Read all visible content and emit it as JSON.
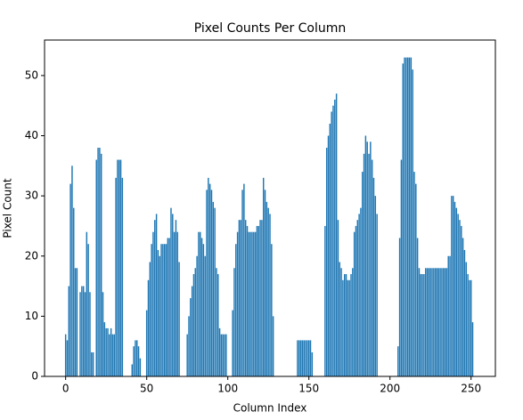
{
  "chart_data": {
    "type": "bar",
    "title": "Pixel Counts Per Column",
    "xlabel": "Column Index",
    "ylabel": "Pixel Count",
    "color": "#1f77b4",
    "x": [
      0,
      1,
      2,
      3,
      4,
      5,
      6,
      7,
      8,
      9,
      10,
      11,
      12,
      13,
      14,
      15,
      16,
      17,
      18,
      19,
      20,
      21,
      22,
      23,
      24,
      25,
      26,
      27,
      28,
      29,
      30,
      31,
      32,
      33,
      34,
      35,
      36,
      37,
      38,
      39,
      40,
      41,
      42,
      43,
      44,
      45,
      46,
      47,
      48,
      49,
      50,
      51,
      52,
      53,
      54,
      55,
      56,
      57,
      58,
      59,
      60,
      61,
      62,
      63,
      64,
      65,
      66,
      67,
      68,
      69,
      70,
      71,
      72,
      73,
      74,
      75,
      76,
      77,
      78,
      79,
      80,
      81,
      82,
      83,
      84,
      85,
      86,
      87,
      88,
      89,
      90,
      91,
      92,
      93,
      94,
      95,
      96,
      97,
      98,
      99,
      100,
      101,
      102,
      103,
      104,
      105,
      106,
      107,
      108,
      109,
      110,
      111,
      112,
      113,
      114,
      115,
      116,
      117,
      118,
      119,
      120,
      121,
      122,
      123,
      124,
      125,
      126,
      127,
      128,
      129,
      130,
      131,
      132,
      133,
      134,
      135,
      136,
      137,
      138,
      139,
      140,
      141,
      142,
      143,
      144,
      145,
      146,
      147,
      148,
      149,
      150,
      151,
      152,
      153,
      154,
      155,
      156,
      157,
      158,
      159,
      160,
      161,
      162,
      163,
      164,
      165,
      166,
      167,
      168,
      169,
      170,
      171,
      172,
      173,
      174,
      175,
      176,
      177,
      178,
      179,
      180,
      181,
      182,
      183,
      184,
      185,
      186,
      187,
      188,
      189,
      190,
      191,
      192,
      193,
      194,
      195,
      196,
      197,
      198,
      199,
      200,
      201,
      202,
      203,
      204,
      205,
      206,
      207,
      208,
      209,
      210,
      211,
      212,
      213,
      214,
      215,
      216,
      217,
      218,
      219,
      220,
      221,
      222,
      223,
      224,
      225,
      226,
      227,
      228,
      229,
      230,
      231,
      232,
      233,
      234,
      235,
      236,
      237,
      238,
      239,
      240,
      241,
      242,
      243,
      244,
      245,
      246,
      247,
      248,
      249,
      250,
      251,
      252
    ],
    "values": [
      7,
      6,
      15,
      32,
      35,
      28,
      18,
      18,
      0,
      14,
      15,
      15,
      14,
      24,
      22,
      14,
      4,
      4,
      0,
      36,
      38,
      38,
      37,
      14,
      9,
      8,
      8,
      7,
      8,
      7,
      7,
      33,
      36,
      36,
      36,
      33,
      0,
      0,
      0,
      0,
      0,
      2,
      5,
      6,
      6,
      5,
      3,
      0,
      0,
      0,
      11,
      16,
      19,
      22,
      24,
      26,
      27,
      21,
      20,
      22,
      22,
      22,
      22,
      23,
      23,
      28,
      27,
      24,
      26,
      24,
      19,
      0,
      0,
      0,
      0,
      7,
      10,
      13,
      15,
      17,
      18,
      20,
      24,
      24,
      23,
      22,
      20,
      31,
      33,
      32,
      31,
      29,
      28,
      18,
      17,
      8,
      7,
      7,
      7,
      7,
      0,
      0,
      0,
      11,
      18,
      22,
      24,
      26,
      26,
      31,
      32,
      26,
      25,
      24,
      24,
      24,
      24,
      24,
      25,
      25,
      26,
      26,
      33,
      31,
      29,
      28,
      27,
      22,
      10,
      0,
      0,
      0,
      0,
      0,
      0,
      0,
      0,
      0,
      0,
      0,
      0,
      0,
      0,
      6,
      6,
      6,
      6,
      6,
      6,
      6,
      6,
      6,
      4,
      0,
      0,
      0,
      0,
      0,
      0,
      0,
      25,
      38,
      40,
      42,
      44,
      45,
      46,
      47,
      26,
      19,
      18,
      16,
      17,
      17,
      16,
      16,
      17,
      18,
      24,
      25,
      26,
      27,
      28,
      34,
      37,
      40,
      39,
      37,
      39,
      36,
      33,
      30,
      27,
      0,
      0,
      0,
      0,
      0,
      0,
      0,
      0,
      0,
      0,
      0,
      0,
      5,
      23,
      36,
      52,
      53,
      53,
      53,
      53,
      53,
      51,
      34,
      32,
      23,
      18,
      17,
      17,
      17,
      18,
      18,
      18,
      18,
      18,
      18,
      18,
      18,
      18,
      18,
      18,
      18,
      18,
      18,
      20,
      20,
      30,
      30,
      29,
      28,
      27,
      26,
      25,
      23,
      21,
      19,
      17,
      16,
      16,
      9,
      0
    ],
    "xlim": [
      -13,
      265
    ],
    "ylim": [
      0,
      55.9
    ],
    "xticks": [
      0,
      50,
      100,
      150,
      200,
      250
    ],
    "yticks": [
      0,
      10,
      20,
      30,
      40,
      50
    ]
  }
}
